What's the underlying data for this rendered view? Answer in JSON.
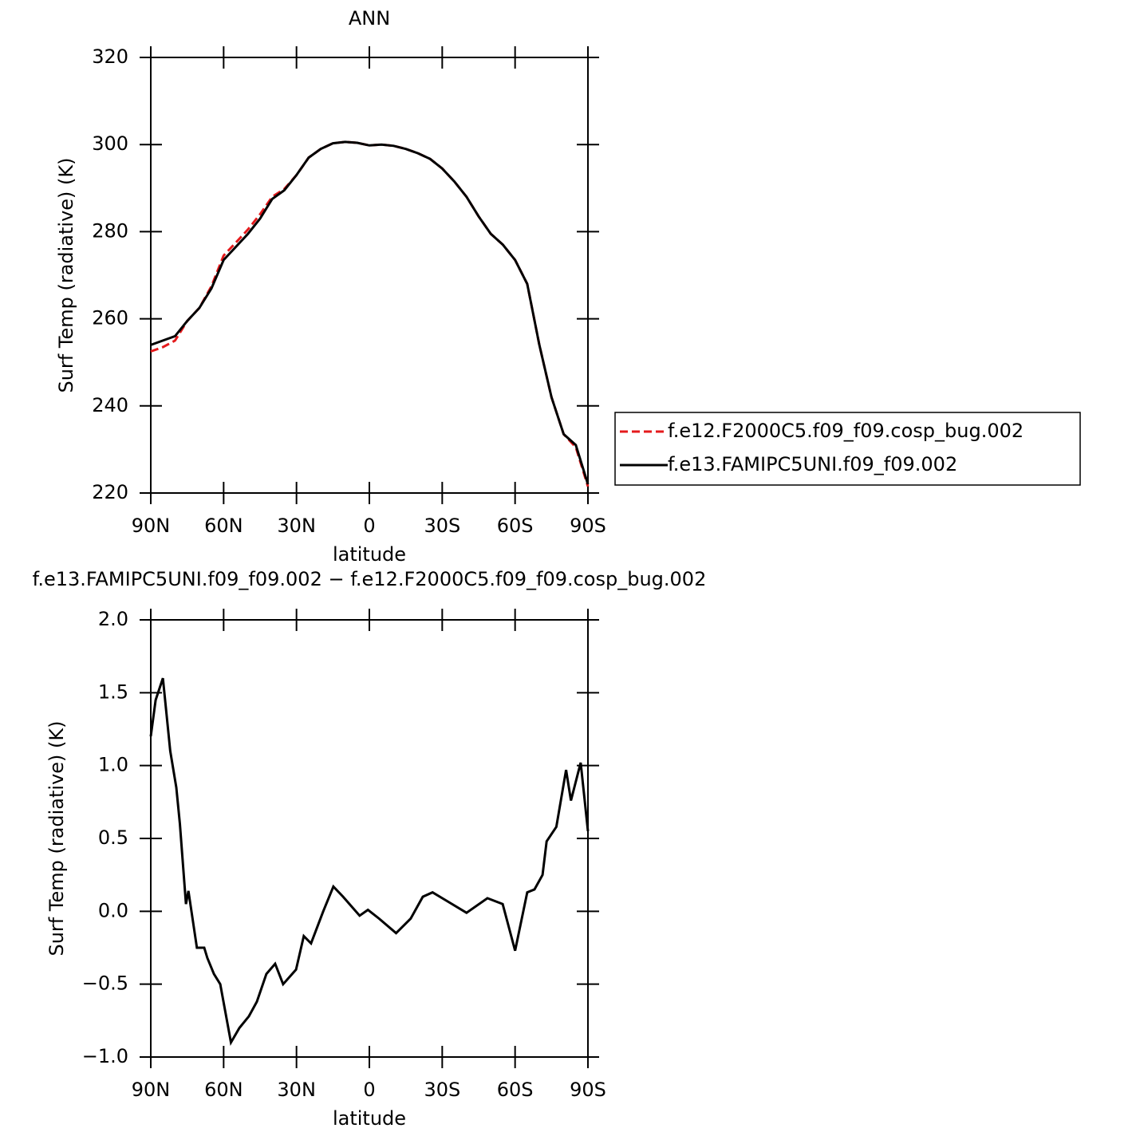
{
  "chart_data": [
    {
      "type": "line",
      "title": "ANN",
      "xlabel": "latitude",
      "ylabel": "Surf Temp (radiative) (K)",
      "x": [
        90,
        85,
        80,
        75,
        70,
        65,
        60,
        55,
        50,
        45,
        40,
        35,
        30,
        25,
        20,
        15,
        10,
        5,
        0,
        -5,
        -10,
        -15,
        -20,
        -25,
        -30,
        -35,
        -40,
        -45,
        -50,
        -55,
        -60,
        -65,
        -70,
        -75,
        -80,
        -85,
        -90
      ],
      "xlim": [
        90,
        -90
      ],
      "xticks": [
        {
          "value": 90,
          "label": "90N"
        },
        {
          "value": 60,
          "label": "60N"
        },
        {
          "value": 30,
          "label": "30N"
        },
        0,
        {
          "value": -30,
          "label": "30S"
        },
        {
          "value": -60,
          "label": "60S"
        },
        {
          "value": -90,
          "label": "90S"
        }
      ],
      "ylim": [
        220,
        320
      ],
      "yticks": [
        220,
        240,
        260,
        280,
        300,
        320
      ],
      "legend": "right",
      "series": [
        {
          "name": "f.e12.F2000C5.f09_f09.cosp_bug.002",
          "color": "#e41a1c",
          "dashed": true,
          "values": [
            252.5,
            253.5,
            255,
            259.5,
            262.5,
            267.5,
            274.5,
            277.5,
            280.5,
            284,
            288,
            289.8,
            293,
            297,
            299,
            300.3,
            300.6,
            300.4,
            299.8,
            300,
            299.7,
            299,
            298,
            296.7,
            294.5,
            291.5,
            288,
            283.5,
            279.5,
            277,
            273.5,
            268,
            254,
            242,
            233.5,
            230.5,
            221.5
          ]
        },
        {
          "name": "f.e13.FAMIPC5UNI.f09_f09.002",
          "color": "#000000",
          "dashed": false,
          "values": [
            254,
            255,
            256,
            259.5,
            262.5,
            267,
            273.5,
            276.5,
            279.5,
            283,
            287.5,
            289.5,
            293,
            297,
            299,
            300.3,
            300.6,
            300.4,
            299.8,
            300,
            299.7,
            299,
            298,
            296.7,
            294.5,
            291.5,
            288,
            283.5,
            279.5,
            277,
            273.5,
            268,
            254,
            242,
            233.5,
            231,
            222
          ]
        }
      ]
    },
    {
      "type": "line",
      "title": "f.e13.FAMIPC5UNI.f09_f09.002 − f.e12.F2000C5.f09_f09.cosp_bug.002",
      "xlabel": "latitude",
      "ylabel": "Surf Temp (radiative) (K)",
      "x": [
        90,
        88,
        85,
        82,
        79.5,
        78,
        75.5,
        74.5,
        71,
        68,
        66.7,
        64,
        61.4,
        57,
        53.5,
        49.6,
        46.3,
        42.4,
        38.8,
        35.5,
        30.2,
        27,
        24,
        19,
        14.8,
        10.8,
        4,
        0.6,
        -4,
        -11,
        -17,
        -22,
        -26,
        -32,
        -40,
        -48.6,
        -54.9,
        -60,
        -65,
        -68,
        -71.3,
        -73,
        -77,
        -81,
        -83,
        -87,
        -90
      ],
      "xlim": [
        90,
        -90
      ],
      "xticks": [
        {
          "value": 90,
          "label": "90N"
        },
        {
          "value": 60,
          "label": "60N"
        },
        {
          "value": 30,
          "label": "30N"
        },
        0,
        {
          "value": -30,
          "label": "30S"
        },
        {
          "value": -60,
          "label": "60S"
        },
        {
          "value": -90,
          "label": "90S"
        }
      ],
      "ylim": [
        -1,
        2
      ],
      "yticks": [
        {
          "value": -1,
          "label": "−1.0"
        },
        {
          "value": -0.5,
          "label": "−0.5"
        },
        {
          "value": 0,
          "label": "0.0"
        },
        {
          "value": 0.5,
          "label": "0.5"
        },
        {
          "value": 1,
          "label": "1.0"
        },
        {
          "value": 1.5,
          "label": "1.5"
        },
        {
          "value": 2,
          "label": "2.0"
        }
      ],
      "series": [
        {
          "color": "#000000",
          "dashed": false,
          "values": [
            1.2,
            1.45,
            1.6,
            1.1,
            0.85,
            0.6,
            0.05,
            0.14,
            -0.25,
            -0.25,
            -0.32,
            -0.43,
            -0.5,
            -0.9,
            -0.8,
            -0.72,
            -0.62,
            -0.43,
            -0.36,
            -0.5,
            -0.4,
            -0.17,
            -0.22,
            0,
            0.17,
            0.1,
            -0.03,
            0.01,
            -0.05,
            -0.15,
            -0.05,
            0.1,
            0.13,
            0.07,
            -0.01,
            0.09,
            0.05,
            -0.27,
            0.13,
            0.15,
            0.25,
            0.48,
            0.58,
            0.97,
            0.76,
            1.02,
            0.55
          ]
        }
      ]
    }
  ]
}
